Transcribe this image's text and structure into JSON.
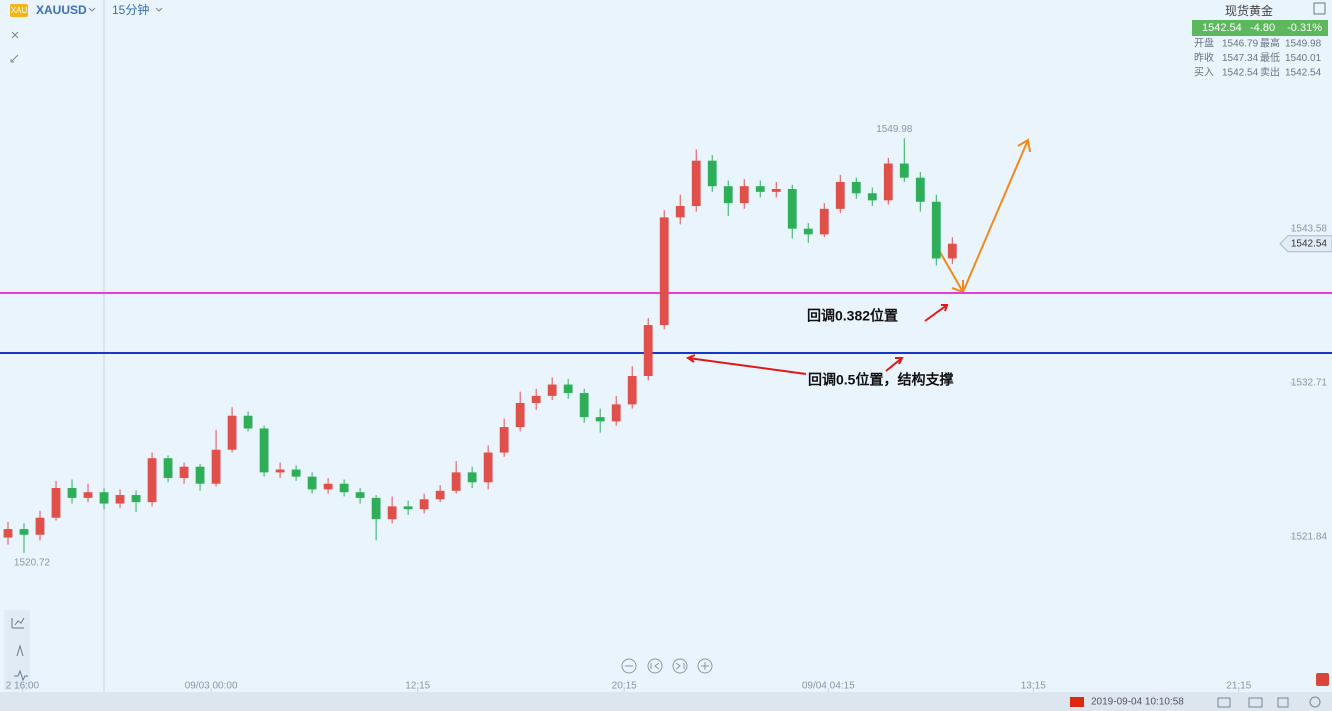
{
  "header": {
    "badge": "XAU",
    "symbol": "XAUUSD",
    "interval": "15分钟"
  },
  "quote": {
    "name": "现货黄金",
    "price": "1542.54",
    "change": "-4.80",
    "change_pct": "-0.31%",
    "rows": [
      [
        "开盘",
        "1546.79",
        "最高",
        "1549.98"
      ],
      [
        "昨收",
        "1547.34",
        "最低",
        "1540.01"
      ],
      [
        "买入",
        "1542.54",
        "卖出",
        "1542.54"
      ]
    ]
  },
  "chart_data": {
    "type": "candlestick",
    "up_color": "#e0504a",
    "down_color": "#2fae5a",
    "ylim": [
      1510.9,
      1559.74
    ],
    "yticks": [
      1521.84,
      1532.71,
      1543.58
    ],
    "xlim": [
      -0.5,
      80.1
    ],
    "xticks": [
      {
        "value": 0.9,
        "label": "2 16:00"
      },
      {
        "value": 12.69,
        "label": "09/03 00:00"
      },
      {
        "value": 25.6,
        "label": "12:15"
      },
      {
        "value": 38.5,
        "label": "20:15"
      },
      {
        "value": 51.25,
        "label": "09/04 04:15"
      },
      {
        "value": 64.06,
        "label": "13:15"
      },
      {
        "value": 76.9,
        "label": "21:15"
      }
    ],
    "open": [
      1521.8,
      1522.4,
      1522.0,
      1523.2,
      1525.3,
      1524.6,
      1525.0,
      1524.2,
      1524.8,
      1524.3,
      1527.4,
      1526.0,
      1526.8,
      1525.6,
      1528.0,
      1530.4,
      1529.5,
      1526.4,
      1526.6,
      1526.1,
      1525.2,
      1525.6,
      1525.0,
      1524.6,
      1523.1,
      1524.0,
      1523.8,
      1524.5,
      1525.1,
      1526.4,
      1525.7,
      1527.8,
      1529.6,
      1531.3,
      1531.8,
      1532.6,
      1532.0,
      1530.3,
      1530.0,
      1531.2,
      1533.2,
      1536.8,
      1544.4,
      1545.2,
      1548.4,
      1546.6,
      1545.4,
      1546.6,
      1546.2,
      1546.4,
      1543.6,
      1543.2,
      1545.0,
      1546.9,
      1546.1,
      1545.6,
      1548.2,
      1547.2,
      1545.5,
      1541.5
    ],
    "high": [
      1522.9,
      1522.8,
      1523.7,
      1525.8,
      1525.9,
      1525.6,
      1525.3,
      1525.2,
      1525.1,
      1527.8,
      1527.6,
      1527.1,
      1527.0,
      1529.4,
      1531.0,
      1530.7,
      1529.7,
      1527.1,
      1526.9,
      1526.4,
      1526.0,
      1525.9,
      1525.3,
      1524.8,
      1524.7,
      1524.4,
      1524.9,
      1525.5,
      1527.2,
      1526.8,
      1528.3,
      1530.2,
      1532.1,
      1532.3,
      1533.1,
      1533.0,
      1532.3,
      1530.9,
      1531.8,
      1533.9,
      1537.3,
      1544.9,
      1546.0,
      1549.2,
      1548.8,
      1547.0,
      1547.1,
      1547.0,
      1546.9,
      1546.7,
      1544.0,
      1545.4,
      1547.4,
      1547.2,
      1546.5,
      1548.6,
      1549.98,
      1547.6,
      1546.0,
      1543.0
    ],
    "low": [
      1521.3,
      1520.72,
      1521.6,
      1523.0,
      1524.2,
      1524.3,
      1523.8,
      1523.9,
      1523.6,
      1524.0,
      1525.7,
      1525.6,
      1525.1,
      1525.4,
      1527.8,
      1529.3,
      1526.1,
      1526.0,
      1525.8,
      1524.9,
      1524.9,
      1524.7,
      1524.2,
      1521.6,
      1522.8,
      1523.4,
      1523.5,
      1524.3,
      1524.9,
      1525.3,
      1525.2,
      1527.5,
      1529.3,
      1530.8,
      1531.5,
      1531.6,
      1529.9,
      1529.2,
      1529.7,
      1530.9,
      1532.9,
      1536.5,
      1543.9,
      1544.8,
      1546.2,
      1544.5,
      1545.0,
      1545.8,
      1545.8,
      1542.9,
      1542.6,
      1543.0,
      1544.7,
      1545.7,
      1545.2,
      1545.3,
      1546.9,
      1544.8,
      1541.0,
      1541.1
    ],
    "close": [
      1522.4,
      1522.0,
      1523.2,
      1525.3,
      1524.6,
      1525.0,
      1524.2,
      1524.8,
      1524.3,
      1527.4,
      1526.0,
      1526.8,
      1525.6,
      1528.0,
      1530.4,
      1529.5,
      1526.4,
      1526.6,
      1526.1,
      1525.2,
      1525.6,
      1525.0,
      1524.6,
      1523.1,
      1524.0,
      1523.8,
      1524.5,
      1525.1,
      1526.4,
      1525.7,
      1527.8,
      1529.6,
      1531.3,
      1531.8,
      1532.6,
      1532.0,
      1530.3,
      1530.0,
      1531.2,
      1533.2,
      1536.8,
      1544.4,
      1545.2,
      1548.4,
      1546.6,
      1545.4,
      1546.6,
      1546.2,
      1546.4,
      1543.6,
      1543.2,
      1545.0,
      1546.9,
      1546.1,
      1545.6,
      1548.2,
      1547.2,
      1545.5,
      1541.5,
      1542.54
    ],
    "levels": [
      {
        "value": 1539.06,
        "color": "#e23de0",
        "label": "回调0.382位置"
      },
      {
        "value": 1534.83,
        "color": "#1836c8",
        "label": "回调0.5位置，结构支撑"
      }
    ]
  },
  "status": {
    "time": "2019-09-04 10:10:58"
  }
}
